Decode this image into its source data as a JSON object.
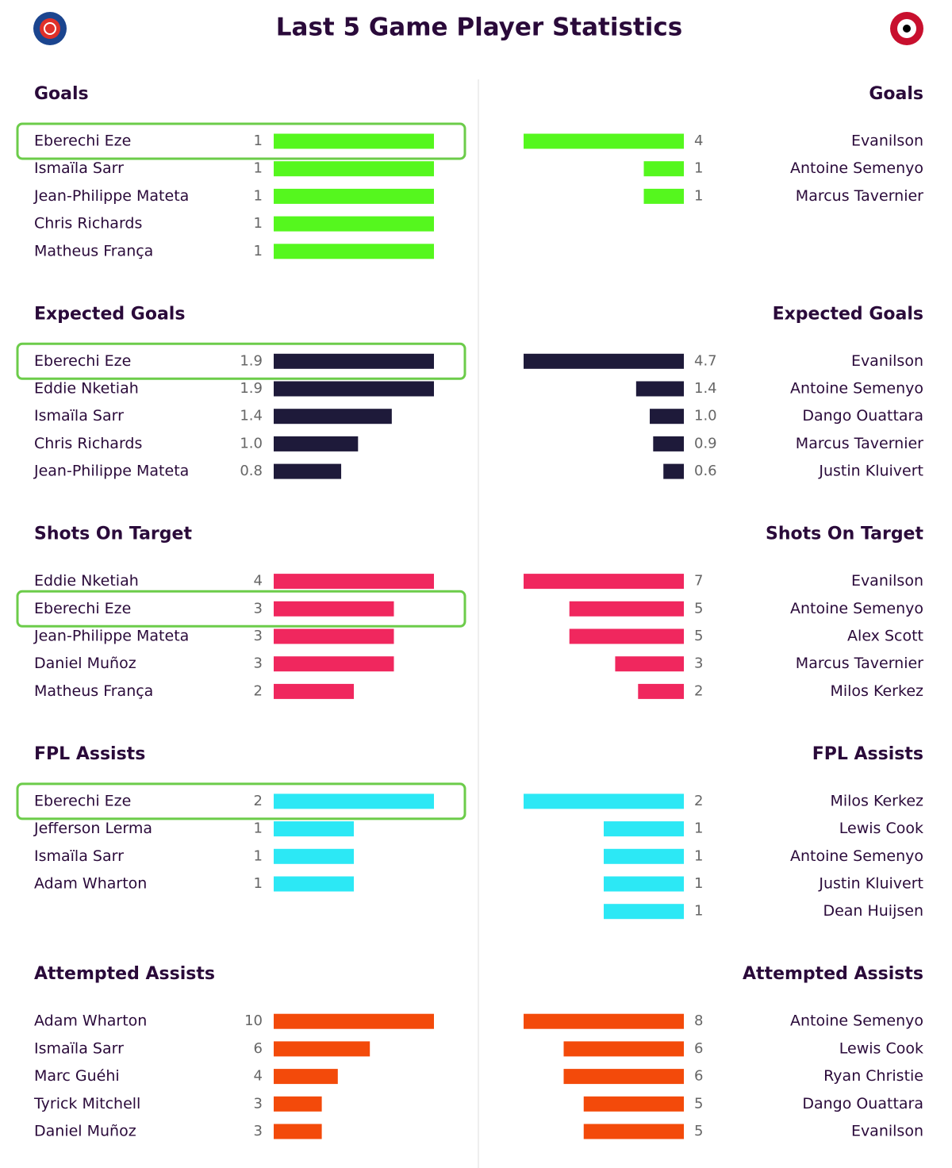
{
  "title": "Last 5 Game Player Statistics",
  "highlight": "Eberechi Eze",
  "sections": [
    {
      "title": "Goals",
      "color": "#55f71e",
      "home": {
        "players": [
          "Eberechi Eze",
          "Ismaïla Sarr",
          "Jean-Philippe Mateta",
          "Chris Richards",
          "Matheus França"
        ],
        "values": [
          1,
          1,
          1,
          1,
          1
        ]
      },
      "away": {
        "players": [
          "Evanilson",
          "Antoine Semenyo",
          "Marcus Tavernier"
        ],
        "values": [
          4,
          1,
          1
        ]
      }
    },
    {
      "title": "Expected Goals",
      "color": "#1e1a3a",
      "home": {
        "players": [
          "Eberechi Eze",
          "Eddie Nketiah",
          "Ismaïla Sarr",
          "Chris Richards",
          "Jean-Philippe Mateta"
        ],
        "values": [
          1.9,
          1.9,
          1.4,
          1,
          0.8
        ],
        "value_labels": [
          "1.9",
          "1.9",
          "1.4",
          "1.0",
          "0.8"
        ]
      },
      "away": {
        "players": [
          "Evanilson",
          "Antoine Semenyo",
          "Dango Ouattara",
          "Marcus Tavernier",
          "Justin Kluivert"
        ],
        "values": [
          4.7,
          1.4,
          1,
          0.9,
          0.6
        ],
        "value_labels": [
          "4.7",
          "1.4",
          "1.0",
          "0.9",
          "0.6"
        ]
      }
    },
    {
      "title": "Shots On Target",
      "color": "#f0275e",
      "home": {
        "players": [
          "Eddie Nketiah",
          "Eberechi Eze",
          "Jean-Philippe Mateta",
          "Daniel Muñoz",
          "Matheus França"
        ],
        "values": [
          4,
          3,
          3,
          3,
          2
        ]
      },
      "away": {
        "players": [
          "Evanilson",
          "Antoine Semenyo",
          "Alex Scott",
          "Marcus Tavernier",
          "Milos Kerkez"
        ],
        "values": [
          7,
          5,
          5,
          3,
          2
        ]
      }
    },
    {
      "title": "FPL Assists",
      "color": "#2ce8f5",
      "home": {
        "players": [
          "Eberechi Eze",
          "Jefferson Lerma",
          "Ismaïla Sarr",
          "Adam Wharton"
        ],
        "values": [
          2,
          1,
          1,
          1
        ]
      },
      "away": {
        "players": [
          "Milos Kerkez",
          "Lewis Cook",
          "Antoine Semenyo",
          "Justin Kluivert",
          "Dean Huijsen"
        ],
        "values": [
          2,
          1,
          1,
          1,
          1
        ]
      }
    },
    {
      "title": "Attempted Assists",
      "color": "#f34a0a",
      "home": {
        "players": [
          "Adam Wharton",
          "Ismaïla Sarr",
          "Marc Guéhi",
          "Tyrick Mitchell",
          "Daniel Muñoz"
        ],
        "values": [
          10,
          6,
          4,
          3,
          3
        ]
      },
      "away": {
        "players": [
          "Antoine Semenyo",
          "Lewis Cook",
          "Ryan Christie",
          "Dango Ouattara",
          "Evanilson"
        ],
        "values": [
          8,
          6,
          6,
          5,
          5
        ]
      }
    }
  ]
}
